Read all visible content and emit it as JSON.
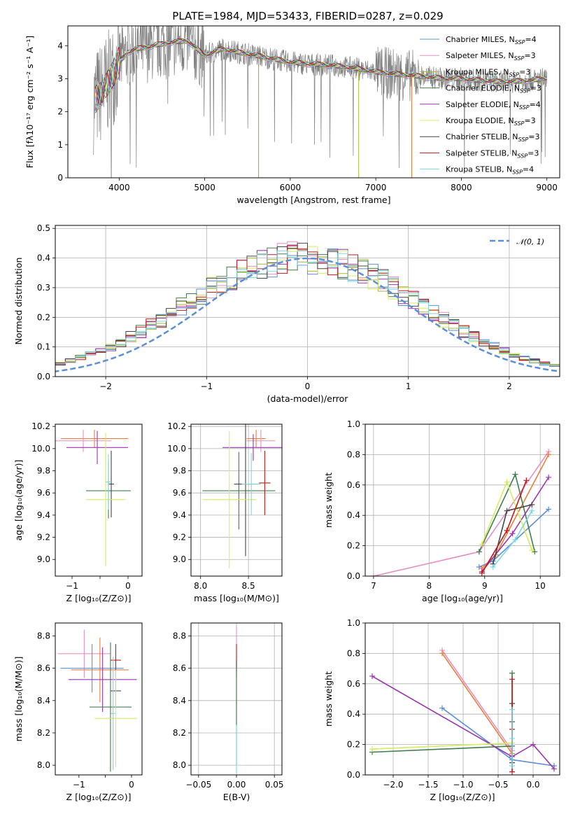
{
  "figure": {
    "title": "PLATE=1984, MJD=53433, FIBERID=0287, z=0.029"
  },
  "chart_data": [
    {
      "id": "spectrum",
      "type": "line",
      "xlabel": "wavelength [Angstrom, rest frame]",
      "ylabel": "Flux [fλ10⁻¹⁷ erg cm⁻² s⁻¹ A⁻¹]",
      "xlim": [
        3400,
        9150
      ],
      "ylim": [
        0,
        4.6
      ],
      "xticks": [
        4000,
        5000,
        6000,
        7000,
        8000,
        9000
      ],
      "yticks": [
        0,
        1,
        2,
        3,
        4
      ],
      "grid": false,
      "legend_position": "top-right",
      "data_color": "#808080",
      "continuum": {
        "x": [
          3700,
          3800,
          3900,
          4000,
          4100,
          4200,
          4400,
          4600,
          4800,
          5000,
          5200,
          5500,
          5800,
          6000,
          6200,
          6500,
          6800,
          7000,
          7200,
          7400,
          7600,
          7800,
          8000,
          8200,
          8500,
          8800,
          9000
        ],
        "y": [
          2.3,
          2.6,
          3.0,
          3.5,
          3.8,
          3.9,
          4.0,
          4.1,
          4.15,
          3.7,
          3.9,
          3.75,
          3.6,
          3.5,
          3.45,
          3.4,
          3.3,
          3.2,
          3.15,
          3.1,
          3.05,
          3.0,
          3.0,
          2.95,
          2.9,
          2.95,
          3.0
        ]
      },
      "series": [
        {
          "name": "Chabrier MILES, N",
          "nssp": "=4",
          "color": "#5b8fd6"
        },
        {
          "name": "Salpeter MILES, N",
          "nssp": "=3",
          "color": "#e68fc4"
        },
        {
          "name": "Kroupa MILES, N",
          "nssp": "=3",
          "color": "#a5b832"
        },
        {
          "name": "Chabrier ELODIE, N",
          "nssp": "=3",
          "color": "#3f7f4f"
        },
        {
          "name": "Salpeter ELODIE, N",
          "nssp": "=4",
          "color": "#9a36b0"
        },
        {
          "name": "Kroupa ELODIE, N",
          "nssp": "=3",
          "color": "#d7ec5e"
        },
        {
          "name": "Chabrier STELIB, N",
          "nssp": "=3",
          "color": "#444444"
        },
        {
          "name": "Salpeter STELIB, N",
          "nssp": "=3",
          "color": "#c11a1a"
        },
        {
          "name": "Kroupa STELIB, N",
          "nssp": "=4",
          "color": "#7ad8e0"
        }
      ],
      "legend_subscript": "SSP"
    },
    {
      "id": "residuals",
      "type": "bar",
      "xlabel": "(data-model)/error",
      "ylabel": "Normed distribution",
      "xlim": [
        -2.5,
        2.5
      ],
      "ylim": [
        0,
        0.51
      ],
      "xticks": [
        -2,
        -1,
        0,
        1,
        2
      ],
      "xticklabels": [
        "−2",
        "−1",
        "0",
        "1",
        "2"
      ],
      "yticks": [
        0.0,
        0.1,
        0.2,
        0.3,
        0.4,
        0.5
      ],
      "yticklabels": [
        "0.0",
        "0.1",
        "0.2",
        "0.3",
        "0.4",
        "0.5"
      ],
      "grid": true,
      "legend_position": "top-right",
      "reference_curve": {
        "name": "𝒩(0, 1)",
        "color": "#5b8fd6"
      },
      "bin_width": 0.1,
      "hist_base": [
        0.017,
        0.021,
        0.025,
        0.03,
        0.036,
        0.044,
        0.053,
        0.063,
        0.074,
        0.087,
        0.101,
        0.117,
        0.134,
        0.152,
        0.172,
        0.192,
        0.213,
        0.235,
        0.256,
        0.277,
        0.298,
        0.318,
        0.336,
        0.353,
        0.367,
        0.38,
        0.389,
        0.396,
        0.4,
        0.401,
        0.4,
        0.396,
        0.389,
        0.38,
        0.367,
        0.353,
        0.336,
        0.318,
        0.298,
        0.277,
        0.256,
        0.235,
        0.213,
        0.192,
        0.172,
        0.152,
        0.134,
        0.117,
        0.101,
        0.087,
        0.074,
        0.063,
        0.053,
        0.044,
        0.036,
        0.03,
        0.025,
        0.021,
        0.017,
        0.014
      ]
    },
    {
      "id": "age-vs-Z",
      "type": "scatter",
      "xlabel": "Z [log₁₀(Z/Z⊙)]",
      "ylabel": "age  [log₁₀(age/yr)]",
      "xlim": [
        -1.3,
        0.25
      ],
      "ylim": [
        8.85,
        10.22
      ],
      "xticks": [
        -1,
        -0.5,
        0
      ],
      "xticklabels": [
        "−1",
        "",
        "0"
      ],
      "yticks": [
        9.0,
        9.2,
        9.4,
        9.6,
        9.8,
        10.0,
        10.2
      ],
      "yticklabels": [
        "9.0",
        "9.2",
        "9.4",
        "9.6",
        "9.8",
        "10.0",
        "10.2"
      ],
      "grid": false,
      "points": [
        {
          "x": -0.6,
          "y": 10.09,
          "xerr": 0.6,
          "yerr": 0.08,
          "color": "#e6803d"
        },
        {
          "x": -0.8,
          "y": 10.07,
          "xerr": 0.5,
          "yerr": 0.1,
          "color": "#e68fc4"
        },
        {
          "x": -0.55,
          "y": 10.01,
          "xerr": 0.55,
          "yerr": 0.15,
          "color": "#9a36b0"
        },
        {
          "x": -0.35,
          "y": 9.62,
          "xerr": 0.4,
          "yerr": 0.25,
          "color": "#3f7f4f"
        },
        {
          "x": -0.3,
          "y": 9.68,
          "xerr": 0.05,
          "yerr": 0.3,
          "color": "#444444"
        },
        {
          "x": -0.4,
          "y": 9.54,
          "xerr": 0.35,
          "yerr": 0.6,
          "color": "#d7ec5e"
        },
        {
          "x": -0.35,
          "y": 9.7,
          "xerr": 0.05,
          "yerr": 0.25,
          "color": "#7ad8e0"
        }
      ]
    },
    {
      "id": "age-vs-mass",
      "type": "scatter",
      "xlabel": "mass [log₁₀(M/M⊙)]",
      "ylabel": "",
      "xlim": [
        7.9,
        8.85
      ],
      "ylim": [
        8.85,
        10.22
      ],
      "xticks": [
        8.0,
        8.5
      ],
      "xticklabels": [
        "8.0",
        "8.5"
      ],
      "yticks": [
        9.0,
        9.2,
        9.4,
        9.6,
        9.8,
        10.0,
        10.2
      ],
      "yticklabels": [
        "9.0",
        "9.2",
        "9.4",
        "9.6",
        "9.8",
        "10.0",
        "10.2"
      ],
      "grid": true,
      "points": [
        {
          "x": 8.58,
          "y": 10.09,
          "xerr": 0.1,
          "yerr": 0.08,
          "color": "#e6803d"
        },
        {
          "x": 8.63,
          "y": 10.07,
          "xerr": 0.15,
          "yerr": 0.1,
          "color": "#e68fc4"
        },
        {
          "x": 8.55,
          "y": 10.01,
          "xerr": 0.32,
          "yerr": 0.12,
          "color": "#9a36b0"
        },
        {
          "x": 8.4,
          "y": 9.62,
          "xerr": 0.38,
          "yerr": 0.35,
          "color": "#3f7f4f"
        },
        {
          "x": 8.47,
          "y": 9.68,
          "xerr": 0.12,
          "yerr": 0.65,
          "color": "#444444"
        },
        {
          "x": 8.3,
          "y": 9.54,
          "xerr": 0.28,
          "yerr": 0.62,
          "color": "#d7ec5e"
        },
        {
          "x": 8.53,
          "y": 9.68,
          "xerr": 0.1,
          "yerr": 0.28,
          "color": "#7ad8e0"
        },
        {
          "x": 8.67,
          "y": 9.69,
          "xerr": 0.06,
          "yerr": 0.29,
          "color": "#c11a1a"
        }
      ]
    },
    {
      "id": "weight-vs-age",
      "type": "line",
      "xlabel": "age  [log₁₀(age/yr)]",
      "ylabel": "mass weight",
      "xlim": [
        6.85,
        10.35
      ],
      "ylim": [
        0,
        1.0
      ],
      "xticks": [
        7,
        8,
        9,
        10
      ],
      "xticklabels": [
        "7",
        "8",
        "9",
        "10"
      ],
      "yticks": [
        0.0,
        0.2,
        0.4,
        0.6,
        0.8,
        1.0
      ],
      "yticklabels": [
        "0.0",
        "0.2",
        "0.4",
        "0.6",
        "0.8",
        "1.0"
      ],
      "grid": true,
      "series": [
        {
          "color": "#5b8fd6",
          "x": [
            8.9,
            9.15,
            10.15
          ],
          "y": [
            0.06,
            0.1,
            0.44
          ]
        },
        {
          "color": "#e68fc4",
          "x": [
            7.0,
            8.9,
            10.15
          ],
          "y": [
            0.0,
            0.16,
            0.82
          ]
        },
        {
          "color": "#e6803d",
          "x": [
            8.95,
            9.2,
            10.15
          ],
          "y": [
            0.05,
            0.14,
            0.8
          ]
        },
        {
          "color": "#3f7f4f",
          "x": [
            8.9,
            9.55,
            9.9
          ],
          "y": [
            0.16,
            0.67,
            0.16
          ]
        },
        {
          "color": "#9a36b0",
          "x": [
            8.95,
            9.5,
            10.15
          ],
          "y": [
            0.03,
            0.28,
            0.65
          ]
        },
        {
          "color": "#d7ec5e",
          "x": [
            8.95,
            9.4,
            9.85
          ],
          "y": [
            0.21,
            0.62,
            0.17
          ]
        },
        {
          "color": "#444444",
          "x": [
            9.15,
            9.4,
            9.85
          ],
          "y": [
            0.08,
            0.43,
            0.47
          ]
        },
        {
          "color": "#c11a1a",
          "x": [
            8.95,
            9.4,
            9.75
          ],
          "y": [
            0.02,
            0.3,
            0.63
          ]
        },
        {
          "color": "#7ad8e0",
          "x": [
            9.15,
            9.55,
            9.85
          ],
          "y": [
            0.06,
            0.24,
            0.43
          ]
        }
      ]
    },
    {
      "id": "mass-vs-Z",
      "type": "scatter",
      "xlabel": "Z [log₁₀(Z/Z⊙)]",
      "ylabel": "mass [log₁₀(M/M⊙)]",
      "xlim": [
        -1.45,
        0.2
      ],
      "ylim": [
        7.94,
        8.88
      ],
      "xticks": [
        -1,
        -0.5,
        0
      ],
      "xticklabels": [
        "−1",
        "",
        "0"
      ],
      "yticks": [
        8.0,
        8.2,
        8.4,
        8.6,
        8.8
      ],
      "yticklabels": [
        "8.0",
        "8.2",
        "8.4",
        "8.6",
        "8.8"
      ],
      "grid": false,
      "points": [
        {
          "x": -0.9,
          "y": 8.69,
          "xerr": 0.5,
          "yerr": 0.15,
          "color": "#e68fc4"
        },
        {
          "x": -0.6,
          "y": 8.59,
          "xerr": 0.55,
          "yerr": 0.2,
          "color": "#e6803d"
        },
        {
          "x": -0.75,
          "y": 8.6,
          "xerr": 0.6,
          "yerr": 0.15,
          "color": "#5b8fd6"
        },
        {
          "x": -0.55,
          "y": 8.53,
          "xerr": 0.65,
          "yerr": 0.2,
          "color": "#9a36b0"
        },
        {
          "x": -0.3,
          "y": 8.65,
          "xerr": 0.1,
          "yerr": 0.1,
          "color": "#c11a1a"
        },
        {
          "x": -0.3,
          "y": 8.46,
          "xerr": 0.1,
          "yerr": 0.1,
          "color": "#444444"
        },
        {
          "x": -0.4,
          "y": 8.36,
          "xerr": 0.4,
          "yerr": 0.4,
          "color": "#3f7f4f"
        },
        {
          "x": -0.3,
          "y": 8.29,
          "xerr": 0.4,
          "yerr": 0.3,
          "color": "#d7ec5e"
        },
        {
          "x": -0.35,
          "y": 8.32,
          "xerr": 0.04,
          "yerr": 0.35,
          "color": "#7ad8e0"
        }
      ]
    },
    {
      "id": "mass-vs-EBV",
      "type": "scatter",
      "xlabel": "E(B-V)",
      "ylabel": "",
      "xlim": [
        -0.06,
        0.06
      ],
      "ylim": [
        7.94,
        8.88
      ],
      "xticks": [
        -0.05,
        0.0,
        0.05
      ],
      "xticklabels": [
        "−0.05",
        "0.00",
        "0.05"
      ],
      "yticks": [
        8.0,
        8.2,
        8.4,
        8.6,
        8.8
      ],
      "yticklabels": [
        "8.0",
        "8.2",
        "8.4",
        "8.6",
        "8.8"
      ],
      "grid": true,
      "points": [
        {
          "x": 0.0,
          "y": 8.72,
          "xerr": 0.0,
          "yerr": 0.14,
          "color": "#e68fc4"
        },
        {
          "x": 0.0,
          "y": 8.65,
          "xerr": 0.0,
          "yerr": 0.1,
          "color": "#c11a1a"
        },
        {
          "x": 0.0,
          "y": 8.45,
          "xerr": 0.0,
          "yerr": 0.2,
          "color": "#444444"
        },
        {
          "x": 0.0,
          "y": 8.3,
          "xerr": 0.0,
          "yerr": 0.3,
          "color": "#3f7f4f"
        },
        {
          "x": 0.0,
          "y": 8.1,
          "xerr": 0.0,
          "yerr": 0.15,
          "color": "#7ad8e0"
        }
      ]
    },
    {
      "id": "weight-vs-Z",
      "type": "line",
      "xlabel": "Z [log₁₀(Z/Z⊙)]",
      "ylabel": "mass weight",
      "xlim": [
        -2.4,
        0.38
      ],
      "ylim": [
        0,
        1.0
      ],
      "xticks": [
        -2.0,
        -1.5,
        -1.0,
        -0.5,
        0.0
      ],
      "xticklabels": [
        "−2.0",
        "−1.5",
        "−1.0",
        "−0.5",
        "0.0"
      ],
      "yticks": [
        0.0,
        0.2,
        0.4,
        0.6,
        0.8,
        1.0
      ],
      "yticklabels": [
        "0.0",
        "0.2",
        "0.4",
        "0.6",
        "0.8",
        "1.0"
      ],
      "grid": true,
      "series": [
        {
          "color": "#5b8fd6",
          "x": [
            -1.3,
            -0.3,
            0.3
          ],
          "y": [
            0.44,
            0.1,
            0.06
          ]
        },
        {
          "color": "#e68fc4",
          "x": [
            -1.3,
            -0.3
          ],
          "y": [
            0.82,
            0.16
          ]
        },
        {
          "color": "#e6803d",
          "x": [
            -1.3,
            -0.3
          ],
          "y": [
            0.8,
            0.14
          ]
        },
        {
          "color": "#3f7f4f",
          "x": [
            -2.3,
            -0.3,
            -0.3
          ],
          "y": [
            0.15,
            0.19,
            0.67
          ]
        },
        {
          "color": "#9a36b0",
          "x": [
            -2.3,
            -0.3,
            0.0,
            0.3
          ],
          "y": [
            0.65,
            0.12,
            0.2,
            0.04
          ]
        },
        {
          "color": "#d7ec5e",
          "x": [
            -2.3,
            -0.3
          ],
          "y": [
            0.17,
            0.21
          ]
        },
        {
          "color": "#444444",
          "x": [
            -0.3,
            -0.3,
            -0.3
          ],
          "y": [
            0.08,
            0.35,
            0.47
          ]
        },
        {
          "color": "#c11a1a",
          "x": [
            -0.3,
            -0.3,
            -0.3
          ],
          "y": [
            0.02,
            0.3,
            0.63
          ]
        },
        {
          "color": "#7ad8e0",
          "x": [
            -0.3,
            -0.3,
            -0.3
          ],
          "y": [
            0.06,
            0.24,
            0.43
          ]
        }
      ]
    }
  ]
}
